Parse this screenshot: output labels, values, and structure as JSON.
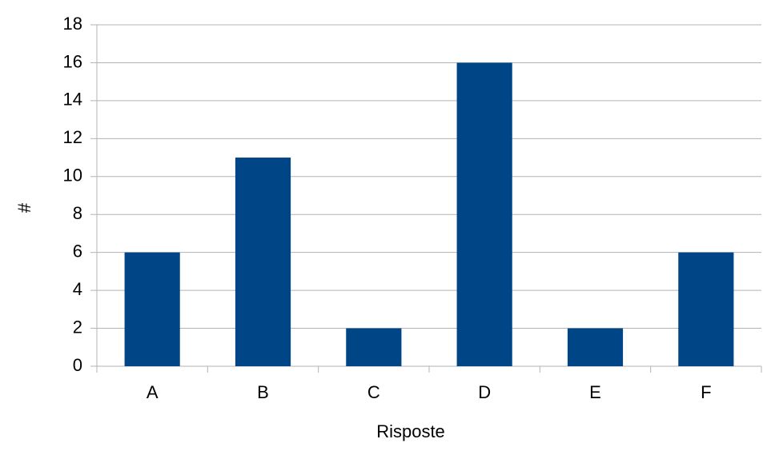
{
  "chart_data": {
    "type": "bar",
    "x_label": "Risposte",
    "y_label": "#",
    "categories": [
      "A",
      "B",
      "C",
      "D",
      "E",
      "F"
    ],
    "values": [
      6,
      11,
      2,
      16,
      2,
      6
    ],
    "color": "#004586",
    "ylim": [
      0,
      18
    ],
    "yticks": [
      0,
      2,
      4,
      6,
      8,
      10,
      12,
      14,
      16,
      18
    ],
    "grid": true
  }
}
